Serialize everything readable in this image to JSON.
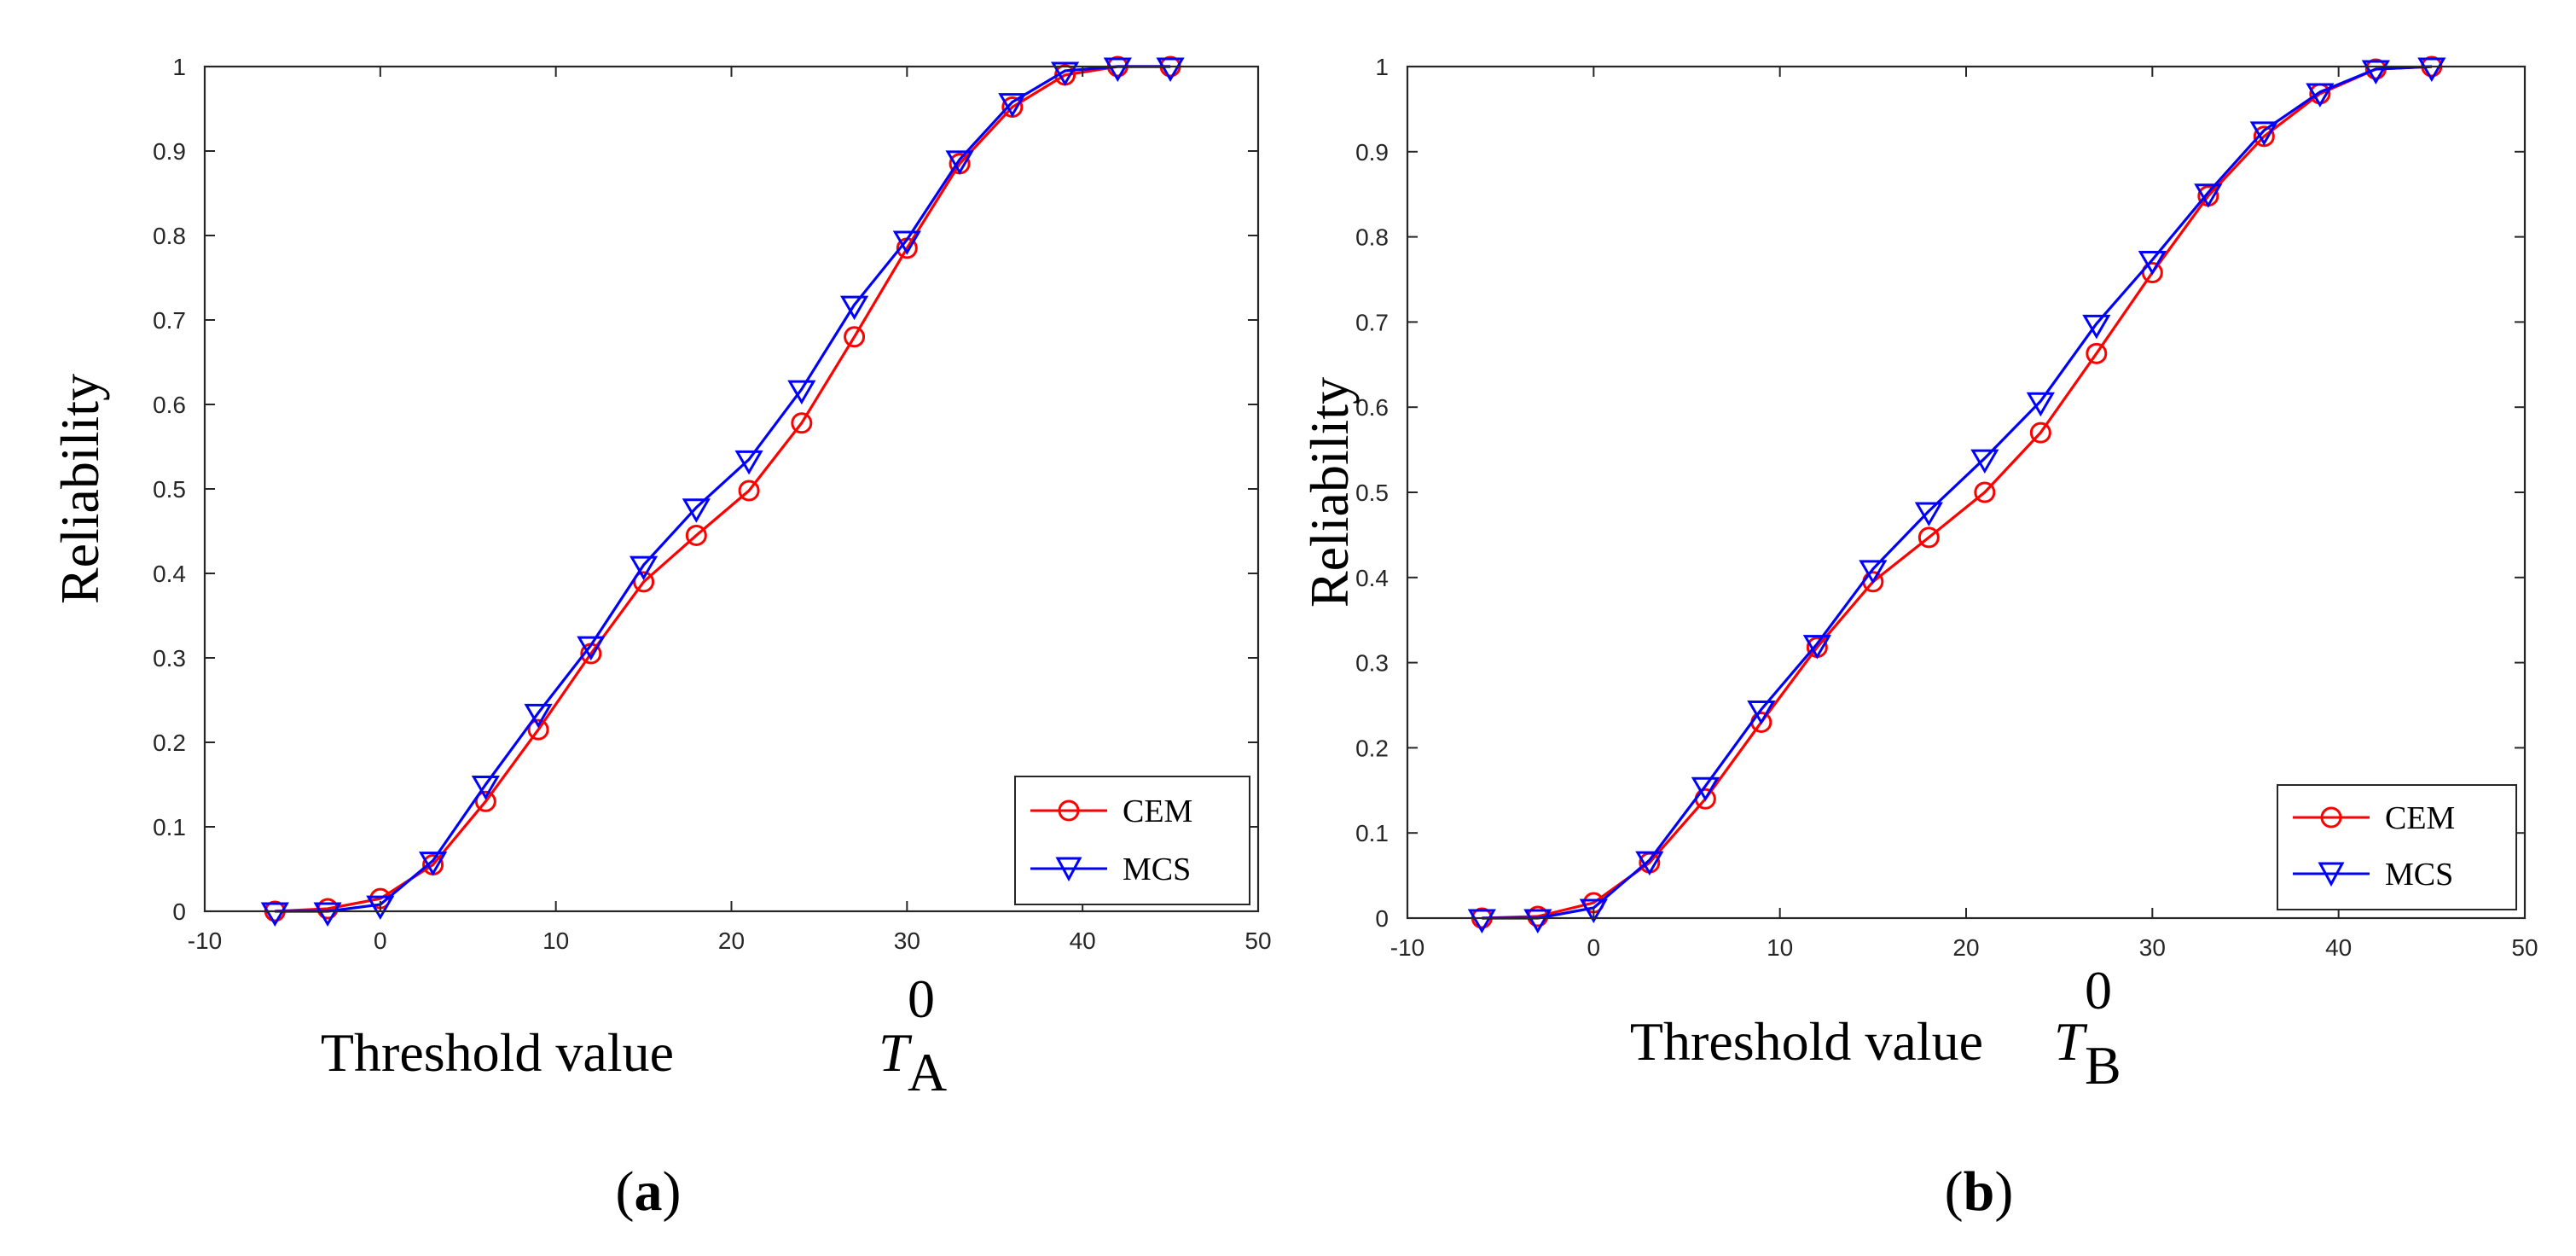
{
  "colors": {
    "cem": "#ff0000",
    "mcs": "#0000ff",
    "axis": "#262626"
  },
  "chart_data": [
    {
      "type": "line",
      "panel": "(a)",
      "panel_letter": "a",
      "xlabel": "Threshold value",
      "xlabel_symbol": "T",
      "xlabel_subscript": "A",
      "xlabel_superscript": "0",
      "ylabel": "Reliability",
      "xlim": [
        -10,
        50
      ],
      "ylim": [
        0,
        1
      ],
      "xticks": [
        -10,
        0,
        10,
        20,
        30,
        40,
        50
      ],
      "yticks": [
        0,
        0.1,
        0.2,
        0.3,
        0.4,
        0.5,
        0.6,
        0.7,
        0.8,
        0.9,
        1
      ],
      "grid": false,
      "legend": "bottom-right",
      "x": [
        -6,
        -3,
        0,
        3,
        6,
        9,
        12,
        15,
        18,
        21,
        24,
        27,
        30,
        33,
        36,
        39,
        42,
        45
      ],
      "series": [
        {
          "name": "CEM",
          "marker": "circle",
          "values": [
            0,
            0.003,
            0.015,
            0.055,
            0.13,
            0.215,
            0.305,
            0.39,
            0.445,
            0.498,
            0.578,
            0.68,
            0.785,
            0.885,
            0.952,
            0.99,
            1,
            1
          ]
        },
        {
          "name": "MCS",
          "marker": "triangle-down",
          "values": [
            0,
            0,
            0.008,
            0.06,
            0.15,
            0.235,
            0.315,
            0.41,
            0.478,
            0.535,
            0.618,
            0.718,
            0.795,
            0.89,
            0.958,
            0.995,
            1,
            1
          ]
        }
      ]
    },
    {
      "type": "line",
      "panel": "(b)",
      "panel_letter": "b",
      "xlabel": "Threshold value",
      "xlabel_symbol": "T",
      "xlabel_subscript": "B",
      "xlabel_superscript": "0",
      "ylabel": "Reliability",
      "xlim": [
        -10,
        50
      ],
      "ylim": [
        0,
        1
      ],
      "xticks": [
        -10,
        0,
        10,
        20,
        30,
        40,
        50
      ],
      "yticks": [
        0,
        0.1,
        0.2,
        0.3,
        0.4,
        0.5,
        0.6,
        0.7,
        0.8,
        0.9,
        1
      ],
      "grid": false,
      "legend": "bottom-right",
      "x": [
        -6,
        -3,
        0,
        3,
        6,
        9,
        12,
        15,
        18,
        21,
        24,
        27,
        30,
        33,
        36,
        39,
        42,
        45
      ],
      "series": [
        {
          "name": "CEM",
          "marker": "circle",
          "values": [
            0,
            0.002,
            0.018,
            0.065,
            0.14,
            0.23,
            0.318,
            0.395,
            0.447,
            0.5,
            0.57,
            0.663,
            0.758,
            0.848,
            0.918,
            0.968,
            0.997,
            1
          ]
        },
        {
          "name": "MCS",
          "marker": "triangle-down",
          "values": [
            0,
            0,
            0.012,
            0.068,
            0.155,
            0.245,
            0.322,
            0.41,
            0.478,
            0.54,
            0.607,
            0.698,
            0.773,
            0.852,
            0.925,
            0.97,
            0.997,
            1
          ]
        }
      ]
    }
  ]
}
